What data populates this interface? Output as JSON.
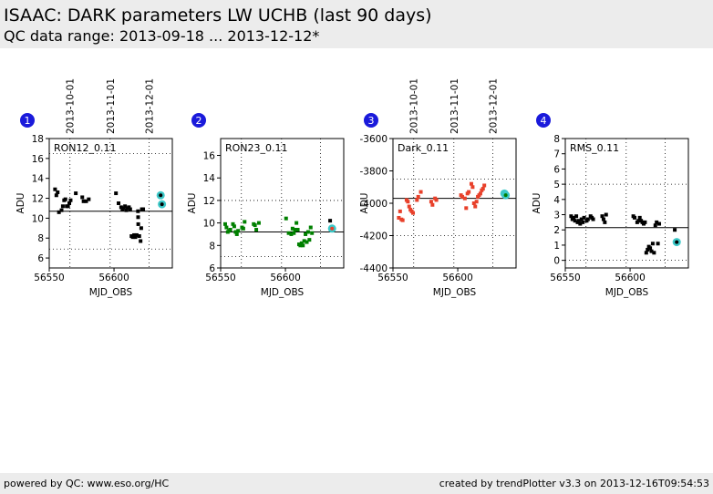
{
  "header": {
    "title": "ISAAC: DARK parameters LW UCHB (last 90 days)",
    "subtitle": "QC data range: 2013-09-18 ... 2013-12-12*"
  },
  "footer": {
    "left": "powered by QC: www.eso.org/HC",
    "right": "created by trendPlotter v3.3 on 2013-12-16T09:54:53"
  },
  "colors": {
    "marker_blue": "#1a1adb",
    "black_points": "#000000",
    "green_points": "#008000",
    "red_points": "#e8402a",
    "cyan_highlight": "#3cc8c8"
  },
  "chart_data": [
    {
      "type": "scatter",
      "panel_number": "1",
      "label": "RON12_0.11",
      "xlabel": "MJD_OBS",
      "ylabel": "ADU",
      "xlim": [
        56550,
        56645
      ],
      "ylim": [
        5,
        18
      ],
      "yticks": [
        6,
        8,
        10,
        12,
        14,
        16,
        18
      ],
      "xticks": [
        56550,
        56600
      ],
      "date_ticks": [
        {
          "label": "2013-10-01",
          "mjd": 56566
        },
        {
          "label": "2013-11-01",
          "mjd": 56597
        },
        {
          "label": "2013-12-01",
          "mjd": 56627
        }
      ],
      "ref_line": 10.7,
      "limits": [
        6.9,
        16.5
      ],
      "point_color": "#000000",
      "points": [
        [
          56554.5,
          12.9
        ],
        [
          56555.5,
          12.3
        ],
        [
          56556.5,
          12.6
        ],
        [
          56557.5,
          10.6
        ],
        [
          56559.5,
          10.8
        ],
        [
          56560.5,
          11.2
        ],
        [
          56561.5,
          11.8
        ],
        [
          56562.5,
          11.9
        ],
        [
          56563.5,
          11.2
        ],
        [
          56564.5,
          11.2
        ],
        [
          56565.5,
          11.5
        ],
        [
          56566.5,
          11.8
        ],
        [
          56570.5,
          12.5
        ],
        [
          56575.5,
          12.1
        ],
        [
          56576.5,
          11.7
        ],
        [
          56578.5,
          11.7
        ],
        [
          56580.5,
          11.9
        ],
        [
          56601.5,
          12.5
        ],
        [
          56603.5,
          11.5
        ],
        [
          56605.5,
          11.1
        ],
        [
          56606.5,
          10.9
        ],
        [
          56607.5,
          11.0
        ],
        [
          56608.5,
          11.2
        ],
        [
          56609.5,
          10.8
        ],
        [
          56610.5,
          11.0
        ],
        [
          56611.5,
          11.1
        ],
        [
          56612.5,
          10.9
        ],
        [
          56613.5,
          8.2
        ],
        [
          56614.5,
          8.1
        ],
        [
          56615.5,
          8.3
        ],
        [
          56616.5,
          8.1
        ],
        [
          56617.5,
          8.3
        ],
        [
          56618.5,
          10.7
        ],
        [
          56618.6,
          10.1
        ],
        [
          56618.7,
          9.4
        ],
        [
          56619.5,
          8.2
        ],
        [
          56620.5,
          7.7
        ],
        [
          56621.5,
          10.9
        ],
        [
          56622.5,
          10.9
        ],
        [
          56621.0,
          9.0
        ]
      ],
      "highlight_points": [
        [
          56636,
          12.3
        ],
        [
          56637,
          11.4
        ]
      ],
      "highlight_fill": "#000000"
    },
    {
      "type": "scatter",
      "panel_number": "2",
      "label": "RON23_0.11",
      "xlabel": "MJD_OBS",
      "ylabel": "ADU",
      "xlim": [
        56550,
        56645
      ],
      "ylim": [
        6,
        17.5
      ],
      "yticks": [
        6,
        8,
        10,
        12,
        14,
        16
      ],
      "xticks": [
        56550,
        56600
      ],
      "date_ticks": [],
      "ref_line": 9.2,
      "limits": [
        7.0,
        12.0
      ],
      "point_color": "#008000",
      "points": [
        [
          56553.5,
          9.9
        ],
        [
          56554.5,
          9.6
        ],
        [
          56555.5,
          9.2
        ],
        [
          56556.5,
          9.3
        ],
        [
          56557.5,
          9.4
        ],
        [
          56559.5,
          9.9
        ],
        [
          56560.5,
          9.7
        ],
        [
          56561.5,
          9.2
        ],
        [
          56562.5,
          9.0
        ],
        [
          56563.5,
          9.3
        ],
        [
          56566.5,
          9.6
        ],
        [
          56567.5,
          9.5
        ],
        [
          56568.5,
          10.1
        ],
        [
          56575.5,
          9.9
        ],
        [
          56576.5,
          9.8
        ],
        [
          56577.5,
          9.4
        ],
        [
          56579.5,
          10.0
        ],
        [
          56600.5,
          10.4
        ],
        [
          56602.5,
          9.1
        ],
        [
          56604.5,
          9.0
        ],
        [
          56605.5,
          9.5
        ],
        [
          56606.5,
          9.1
        ],
        [
          56607.5,
          9.4
        ],
        [
          56608.5,
          10.0
        ],
        [
          56609.5,
          9.4
        ],
        [
          56610.5,
          8.1
        ],
        [
          56611.5,
          8.0
        ],
        [
          56612.5,
          8.2
        ],
        [
          56613.5,
          8.0
        ],
        [
          56614.5,
          8.4
        ],
        [
          56615.5,
          9.0
        ],
        [
          56616.5,
          8.3
        ],
        [
          56617.5,
          9.2
        ],
        [
          56618.5,
          8.5
        ],
        [
          56619.5,
          9.6
        ],
        [
          56620.5,
          9.1
        ]
      ],
      "extra_points": [
        [
          56634.5,
          10.2
        ]
      ],
      "highlight_points": [
        [
          56636,
          9.5
        ]
      ],
      "highlight_fill": "#e8402a"
    },
    {
      "type": "scatter",
      "panel_number": "3",
      "label": "Dark_0.11",
      "xlabel": "MJD_OBS",
      "ylabel": "ADU",
      "xlim": [
        56550,
        56645
      ],
      "ylim": [
        -4400,
        -3600
      ],
      "yticks": [
        -4400,
        -4200,
        -4000,
        -3800,
        -3600
      ],
      "xticks": [
        56550,
        56600
      ],
      "date_ticks": [
        {
          "label": "2013-10-01",
          "mjd": 56566
        },
        {
          "label": "2013-11-01",
          "mjd": 56597
        },
        {
          "label": "2013-12-01",
          "mjd": 56627
        }
      ],
      "ref_line": -3970,
      "limits": [
        -3850,
        -4200
      ],
      "point_color": "#e8402a",
      "points": [
        [
          56554.5,
          -4090
        ],
        [
          56555.5,
          -4050
        ],
        [
          56556.5,
          -4100
        ],
        [
          56557.5,
          -4105
        ],
        [
          56560.5,
          -3980
        ],
        [
          56561.5,
          -3990
        ],
        [
          56562.5,
          -4020
        ],
        [
          56563.5,
          -4040
        ],
        [
          56564.5,
          -4050
        ],
        [
          56565.5,
          -4060
        ],
        [
          56568.5,
          -3980
        ],
        [
          56569.5,
          -3960
        ],
        [
          56571.5,
          -3930
        ],
        [
          56579.5,
          -3990
        ],
        [
          56580.5,
          -4010
        ],
        [
          56582.5,
          -3970
        ],
        [
          56583.5,
          -3980
        ],
        [
          56602.5,
          -3950
        ],
        [
          56603.5,
          -3960
        ],
        [
          56605.5,
          -3970
        ],
        [
          56606.5,
          -4030
        ],
        [
          56607.5,
          -3940
        ],
        [
          56608.5,
          -3930
        ],
        [
          56610.5,
          -3880
        ],
        [
          56611.5,
          -3900
        ],
        [
          56612.5,
          -4000
        ],
        [
          56613.5,
          -4020
        ],
        [
          56614.5,
          -3990
        ],
        [
          56615.5,
          -3960
        ],
        [
          56616.5,
          -3950
        ],
        [
          56617.5,
          -3940
        ],
        [
          56618.5,
          -3920
        ],
        [
          56619.5,
          -3910
        ],
        [
          56620.5,
          -3890
        ]
      ],
      "highlight_points": [
        [
          56636,
          -3940
        ],
        [
          56637,
          -3950
        ]
      ],
      "highlight_fill": "#008000"
    },
    {
      "type": "scatter",
      "panel_number": "4",
      "label": "RMS_0.11",
      "xlabel": "MJD_OBS",
      "ylabel": "ADU",
      "xlim": [
        56550,
        56645
      ],
      "ylim": [
        -0.5,
        8
      ],
      "yticks": [
        0,
        1,
        2,
        3,
        4,
        5,
        6,
        7,
        8
      ],
      "xticks": [
        56550,
        56600
      ],
      "date_ticks": [],
      "ref_line": 2.15,
      "limits": [
        0,
        5
      ],
      "point_color": "#000000",
      "points": [
        [
          56554.5,
          2.9
        ],
        [
          56555.5,
          2.7
        ],
        [
          56556.5,
          2.8
        ],
        [
          56557.5,
          2.6
        ],
        [
          56558.5,
          2.9
        ],
        [
          56559.5,
          2.5
        ],
        [
          56560.5,
          2.6
        ],
        [
          56561.5,
          2.4
        ],
        [
          56562.5,
          2.7
        ],
        [
          56563.5,
          2.5
        ],
        [
          56564.5,
          2.8
        ],
        [
          56566.5,
          2.6
        ],
        [
          56567.5,
          2.7
        ],
        [
          56569.5,
          2.9
        ],
        [
          56570.5,
          2.8
        ],
        [
          56571.5,
          2.7
        ],
        [
          56578.5,
          2.9
        ],
        [
          56579.5,
          2.7
        ],
        [
          56580.5,
          2.5
        ],
        [
          56581.5,
          3.0
        ],
        [
          56602.5,
          2.9
        ],
        [
          56603.5,
          2.8
        ],
        [
          56605.5,
          2.5
        ],
        [
          56606.5,
          2.6
        ],
        [
          56607.5,
          2.8
        ],
        [
          56608.5,
          2.6
        ],
        [
          56609.5,
          2.5
        ],
        [
          56610.5,
          2.4
        ],
        [
          56611.5,
          2.5
        ],
        [
          56612.5,
          0.5
        ],
        [
          56613.5,
          0.7
        ],
        [
          56614.5,
          0.9
        ],
        [
          56615.5,
          0.8
        ],
        [
          56616.5,
          0.6
        ],
        [
          56617.5,
          1.1
        ],
        [
          56618.5,
          0.5
        ],
        [
          56619.5,
          2.3
        ],
        [
          56620.5,
          2.5
        ],
        [
          56621.5,
          1.1
        ],
        [
          56622.5,
          2.4
        ]
      ],
      "extra_points": [
        [
          56634.5,
          2.0
        ]
      ],
      "highlight_points": [
        [
          56636,
          1.2
        ]
      ],
      "highlight_fill": "#000000"
    }
  ]
}
